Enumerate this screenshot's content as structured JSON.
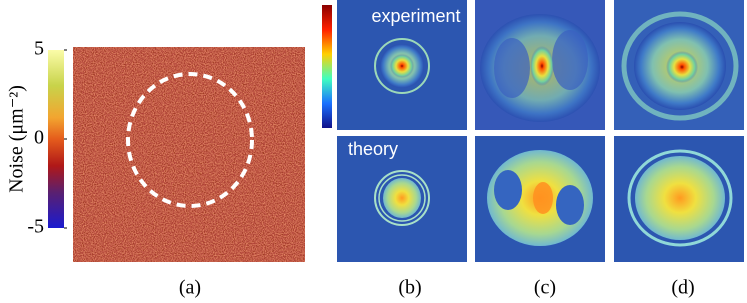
{
  "colorbar": {
    "label": "Noise (μm⁻²)",
    "ticks": [
      5,
      0,
      -5
    ]
  },
  "row_labels": [
    "experiment",
    "theory"
  ],
  "captions": [
    "(a)",
    "(b)",
    "(c)",
    "(d)"
  ]
}
